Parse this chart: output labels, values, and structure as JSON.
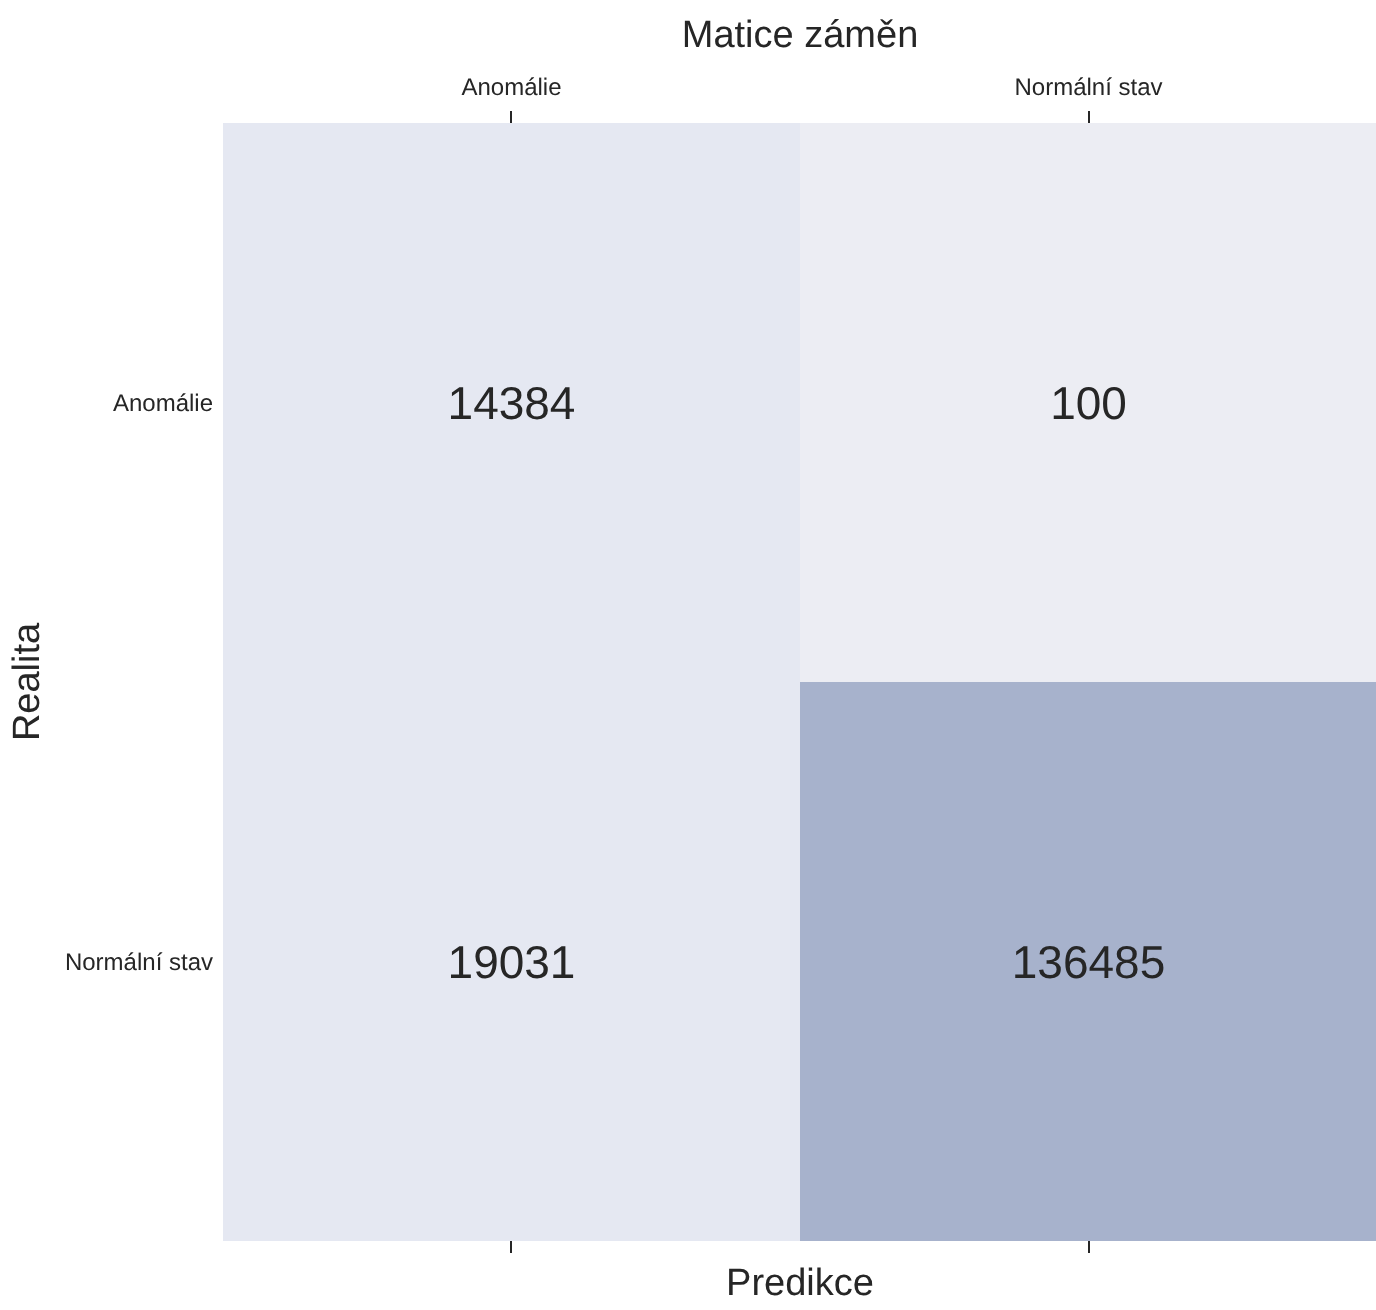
{
  "chart_data": {
    "type": "heatmap",
    "title": "Matice záměn",
    "xlabel": "Predikce",
    "ylabel": "Realita",
    "categories": [
      "Anomálie",
      "Normální stav"
    ],
    "y_categories": [
      "Anomálie",
      "Normální stav"
    ],
    "cells": [
      [
        14384,
        100
      ],
      [
        19031,
        136485
      ]
    ],
    "colors": [
      "#e5e8f2",
      "#ecedf3",
      "#e5e8f2",
      "#a7b2cc"
    ],
    "data_labels": true
  }
}
